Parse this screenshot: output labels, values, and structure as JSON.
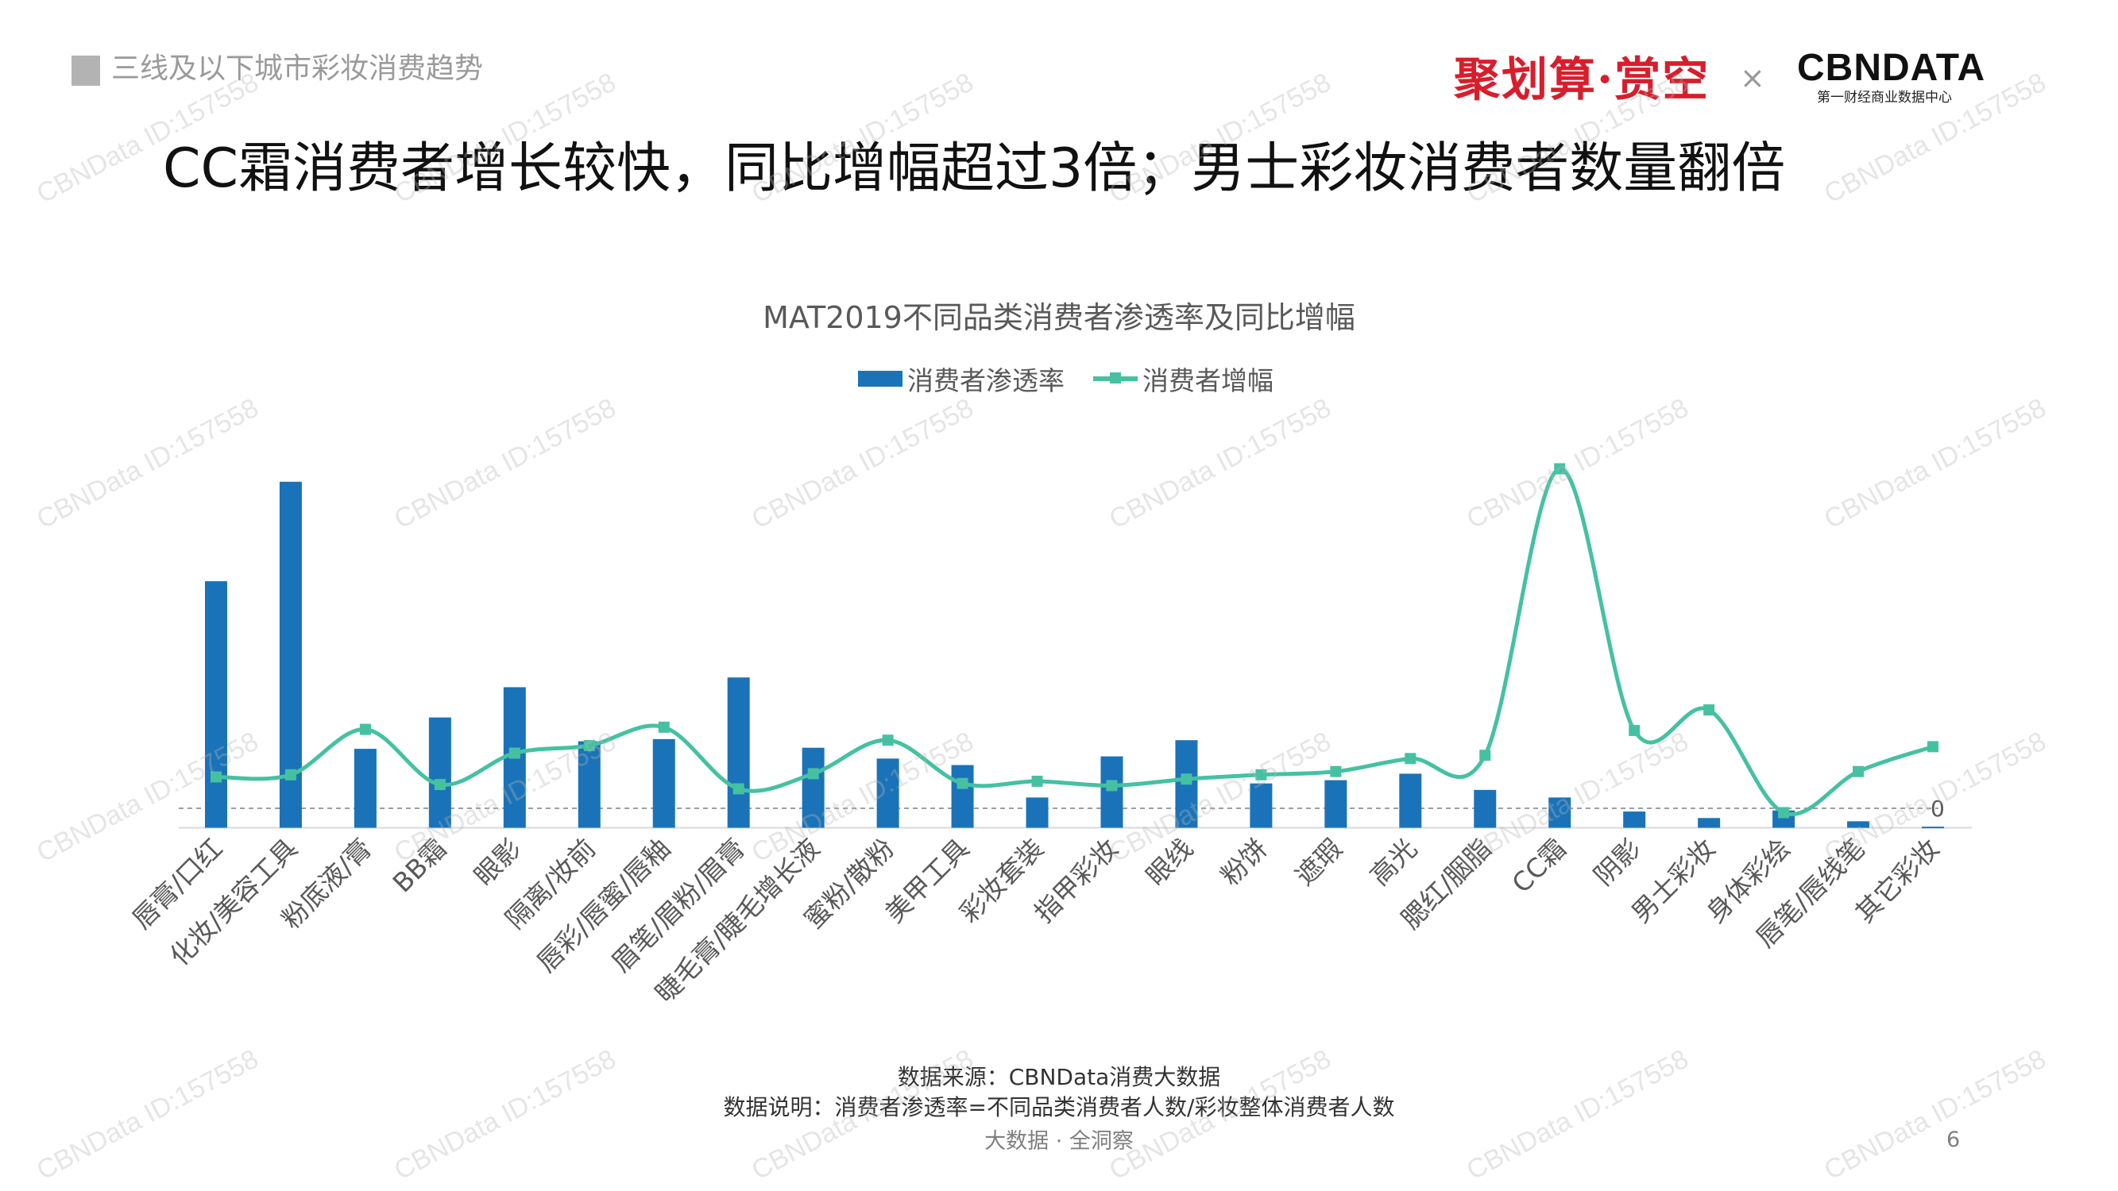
{
  "header": {
    "section_title": "三线及以下城市彩妆消费趋势",
    "brand_left": "聚划算·赏空",
    "brand_separator": "×",
    "brand_right": "CBNDATA",
    "brand_right_sub": "第一财经商业数据中心"
  },
  "headline": "CC霜消费者增长较快，同比增幅超过3倍；男士彩妆消费者数量翻倍",
  "watermark_text": "CBNData ID:157558",
  "chart_data": {
    "type": "bar",
    "title": "MAT2019不同品类消费者渗透率及同比增幅",
    "legend_position": "top",
    "grid": false,
    "ylim": [
      -0.18,
      3.4
    ],
    "zero_label": "0",
    "categories": [
      "唇膏/口红",
      "化妆/美容工具",
      "粉底液/膏",
      "BB霜",
      "眼影",
      "隔离/妆前",
      "唇彩/唇蜜/唇釉",
      "眉笔/眉粉/眉膏",
      "睫毛膏/睫毛增长液",
      "蜜粉/散粉",
      "美甲工具",
      "彩妆套装",
      "指甲彩妆",
      "眼线",
      "粉饼",
      "遮瑕",
      "高光",
      "腮红/胭脂",
      "CC霜",
      "阴影",
      "男士彩妆",
      "身体彩绘",
      "唇笔/唇线笔",
      "其它彩妆"
    ],
    "series": [
      {
        "name": "消费者渗透率",
        "kind": "bar",
        "color": "#1a73b8",
        "values": [
          2.1,
          3.02,
          0.55,
          0.84,
          1.12,
          0.62,
          0.64,
          1.21,
          0.56,
          0.46,
          0.4,
          0.1,
          0.48,
          0.63,
          0.23,
          0.26,
          0.32,
          0.17,
          0.1,
          -0.03,
          -0.09,
          -0.02,
          -0.12,
          -0.17
        ]
      },
      {
        "name": "消费者增幅",
        "kind": "line",
        "color": "#45c1a2",
        "values": [
          0.29,
          0.31,
          0.73,
          0.22,
          0.51,
          0.58,
          0.75,
          0.18,
          0.32,
          0.63,
          0.23,
          0.25,
          0.21,
          0.27,
          0.31,
          0.34,
          0.46,
          0.49,
          3.14,
          0.72,
          0.91,
          -0.04,
          0.34,
          0.57
        ]
      }
    ]
  },
  "footnotes": {
    "source": "数据来源：CBNData消费大数据",
    "note": "数据说明：消费者渗透率=不同品类消费者人数/彩妆整体消费者人数"
  },
  "footer": {
    "tagline": "大数据 · 全洞察",
    "page_number": "6"
  }
}
